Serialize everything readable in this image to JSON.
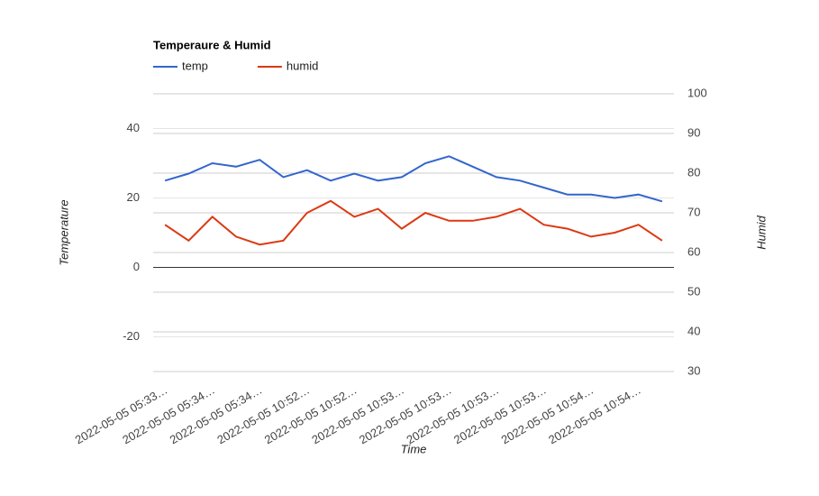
{
  "chart_data": {
    "type": "line",
    "title": "Temperaure & Humid",
    "xlabel": "Time",
    "ylabel": "Temperature",
    "y2label": "Humid",
    "categories": [
      "2022-05-05 05:33…",
      null,
      "2022-05-05 05:34…",
      null,
      "2022-05-05 05:34…",
      null,
      "2022-05-05 10:52…",
      null,
      "2022-05-05 10:52…",
      null,
      "2022-05-05 10:53…",
      null,
      "2022-05-05 10:53…",
      null,
      "2022-05-05 10:53…",
      null,
      "2022-05-05 10:53…",
      null,
      "2022-05-05 10:54…",
      null,
      "2022-05-05 10:54…",
      null
    ],
    "series": [
      {
        "name": "temp",
        "color": "#3366cc",
        "values": [
          25,
          27,
          30,
          29,
          31,
          26,
          28,
          25,
          27,
          25,
          26,
          30,
          32,
          29,
          26,
          25,
          23,
          21,
          21,
          20,
          21,
          19
        ]
      },
      {
        "name": "humid",
        "color": "#dc3912",
        "axis": "y2",
        "values": [
          67,
          63,
          69,
          64,
          62,
          63,
          70,
          73,
          69,
          71,
          66,
          70,
          68,
          68,
          69,
          71,
          67,
          66,
          64,
          65,
          67,
          63
        ]
      }
    ],
    "ylim": [
      -30,
      50
    ],
    "yticks": [
      -20,
      0,
      20,
      40
    ],
    "y2lim": [
      30,
      100
    ],
    "y2ticks": [
      30,
      40,
      50,
      60,
      70,
      80,
      90,
      100
    ],
    "grid": true,
    "legend": "top"
  }
}
